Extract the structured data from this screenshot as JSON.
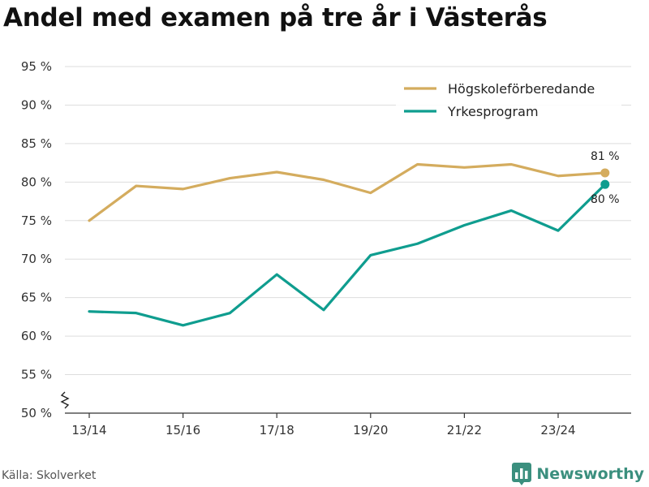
{
  "title": "Andel med examen på tre år i Västerås",
  "source": "Källa: Skolverket",
  "brand": {
    "name": "Newsworthy",
    "icon": "newsworthy-logo-icon"
  },
  "colors": {
    "hogskole": "#d4ac5e",
    "yrkes": "#0f9d8f",
    "grid": "#dddddd",
    "axis": "#333333",
    "brand": "#3b8f7e"
  },
  "chart_data": {
    "type": "line",
    "title": "Andel med examen på tre år i Västerås",
    "xlabel": "",
    "ylabel": "",
    "categories": [
      "13/14",
      "14/15",
      "15/16",
      "16/17",
      "17/18",
      "18/19",
      "19/20",
      "20/21",
      "21/22",
      "22/23",
      "23/24",
      "24/25"
    ],
    "x_tick_labels": [
      "13/14",
      "15/16",
      "17/18",
      "19/20",
      "21/22",
      "23/24"
    ],
    "y_ticks": [
      50,
      55,
      60,
      65,
      70,
      75,
      80,
      85,
      90,
      95
    ],
    "y_tick_labels": [
      "50 %",
      "55 %",
      "60 %",
      "65 %",
      "70 %",
      "75 %",
      "80 %",
      "85 %",
      "90 %",
      "95 %"
    ],
    "ylim": [
      50,
      97
    ],
    "grid": true,
    "axis_break": true,
    "legend_position": "top-right",
    "series": [
      {
        "name": "Högskoleförberedande",
        "color": "#d4ac5e",
        "values": [
          75.0,
          79.5,
          79.1,
          80.5,
          81.3,
          80.3,
          78.6,
          82.3,
          81.9,
          82.3,
          80.8,
          81.2
        ],
        "end_label": "81 %"
      },
      {
        "name": "Yrkesprogram",
        "color": "#0f9d8f",
        "values": [
          63.2,
          63.0,
          61.4,
          63.0,
          68.0,
          63.4,
          70.5,
          72.0,
          74.4,
          76.3,
          73.7,
          79.7
        ],
        "end_label": "80 %"
      }
    ]
  }
}
